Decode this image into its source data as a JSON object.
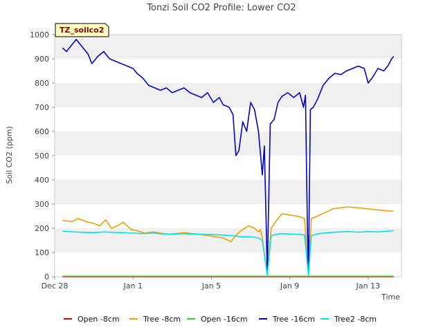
{
  "chart_data": {
    "type": "line",
    "title": "Tonzi Soil CO2 Profile: Lower CO2",
    "xlabel": "Time",
    "ylabel": "Soil CO2 (ppm)",
    "ylim": [
      0,
      1000
    ],
    "yticks": [
      "0",
      "100",
      "200",
      "300",
      "400",
      "500",
      "600",
      "700",
      "800",
      "900",
      "1000"
    ],
    "xlim_days": [
      0,
      17.7
    ],
    "xticks": [
      {
        "label": "Dec 28",
        "day": 0
      },
      {
        "label": "Jan 1",
        "day": 4
      },
      {
        "label": "Jan 5",
        "day": 8
      },
      {
        "label": "Jan 9",
        "day": 12
      },
      {
        "label": "Jan 13",
        "day": 16
      }
    ],
    "badge": "TZ_soilco2",
    "grid": "horizontal bands",
    "legend_position": "bottom",
    "series": [
      {
        "name": "Open -8cm",
        "color": "#dd0000",
        "points": [
          [
            0.4,
            0
          ],
          [
            17.3,
            0
          ]
        ]
      },
      {
        "name": "Tree -8cm",
        "color": "#f0a000",
        "points": [
          [
            0.4,
            232
          ],
          [
            0.9,
            228
          ],
          [
            1.2,
            240
          ],
          [
            1.6,
            228
          ],
          [
            2.0,
            220
          ],
          [
            2.3,
            210
          ],
          [
            2.6,
            235
          ],
          [
            2.9,
            200
          ],
          [
            3.2,
            210
          ],
          [
            3.5,
            225
          ],
          [
            3.9,
            195
          ],
          [
            4.2,
            190
          ],
          [
            4.6,
            180
          ],
          [
            5.0,
            185
          ],
          [
            5.4,
            180
          ],
          [
            5.8,
            175
          ],
          [
            6.2,
            178
          ],
          [
            6.6,
            182
          ],
          [
            7.0,
            178
          ],
          [
            7.4,
            175
          ],
          [
            7.8,
            170
          ],
          [
            8.2,
            165
          ],
          [
            8.6,
            160
          ],
          [
            9.0,
            145
          ],
          [
            9.3,
            175
          ],
          [
            9.6,
            195
          ],
          [
            9.9,
            210
          ],
          [
            10.2,
            200
          ],
          [
            10.4,
            185
          ],
          [
            10.5,
            195
          ],
          [
            10.6,
            160
          ],
          [
            10.85,
            10
          ],
          [
            11.05,
            200
          ],
          [
            11.3,
            230
          ],
          [
            11.6,
            260
          ],
          [
            12.0,
            255
          ],
          [
            12.4,
            250
          ],
          [
            12.6,
            245
          ],
          [
            12.75,
            240
          ],
          [
            12.95,
            10
          ],
          [
            13.1,
            240
          ],
          [
            13.4,
            250
          ],
          [
            13.8,
            265
          ],
          [
            14.2,
            280
          ],
          [
            14.6,
            285
          ],
          [
            15.0,
            288
          ],
          [
            15.4,
            285
          ],
          [
            15.8,
            282
          ],
          [
            16.2,
            278
          ],
          [
            16.6,
            275
          ],
          [
            17.0,
            272
          ],
          [
            17.3,
            270
          ]
        ]
      },
      {
        "name": "Open -16cm",
        "color": "#22dd22",
        "points": [
          [
            0.4,
            2
          ],
          [
            17.3,
            2
          ]
        ]
      },
      {
        "name": "Tree -16cm",
        "color": "#0000cc",
        "points": [
          [
            0.4,
            945
          ],
          [
            0.6,
            930
          ],
          [
            0.9,
            960
          ],
          [
            1.1,
            980
          ],
          [
            1.4,
            950
          ],
          [
            1.7,
            920
          ],
          [
            1.9,
            880
          ],
          [
            2.2,
            910
          ],
          [
            2.5,
            930
          ],
          [
            2.8,
            900
          ],
          [
            3.1,
            890
          ],
          [
            3.4,
            880
          ],
          [
            3.7,
            870
          ],
          [
            4.0,
            860
          ],
          [
            4.2,
            840
          ],
          [
            4.5,
            820
          ],
          [
            4.8,
            790
          ],
          [
            5.1,
            780
          ],
          [
            5.4,
            770
          ],
          [
            5.7,
            780
          ],
          [
            6.0,
            760
          ],
          [
            6.3,
            770
          ],
          [
            6.6,
            780
          ],
          [
            6.9,
            760
          ],
          [
            7.2,
            750
          ],
          [
            7.5,
            740
          ],
          [
            7.8,
            760
          ],
          [
            8.1,
            720
          ],
          [
            8.4,
            740
          ],
          [
            8.6,
            710
          ],
          [
            8.9,
            700
          ],
          [
            9.1,
            670
          ],
          [
            9.25,
            500
          ],
          [
            9.4,
            520
          ],
          [
            9.6,
            640
          ],
          [
            9.8,
            600
          ],
          [
            10.0,
            720
          ],
          [
            10.2,
            690
          ],
          [
            10.4,
            600
          ],
          [
            10.6,
            420
          ],
          [
            10.7,
            540
          ],
          [
            10.8,
            200
          ],
          [
            10.85,
            10
          ],
          [
            11.0,
            630
          ],
          [
            11.2,
            650
          ],
          [
            11.4,
            720
          ],
          [
            11.6,
            745
          ],
          [
            11.9,
            760
          ],
          [
            12.2,
            740
          ],
          [
            12.5,
            760
          ],
          [
            12.7,
            700
          ],
          [
            12.8,
            750
          ],
          [
            12.9,
            200
          ],
          [
            12.95,
            10
          ],
          [
            13.05,
            690
          ],
          [
            13.2,
            700
          ],
          [
            13.4,
            730
          ],
          [
            13.7,
            790
          ],
          [
            14.0,
            820
          ],
          [
            14.3,
            840
          ],
          [
            14.6,
            835
          ],
          [
            14.9,
            850
          ],
          [
            15.2,
            860
          ],
          [
            15.5,
            870
          ],
          [
            15.8,
            860
          ],
          [
            16.0,
            800
          ],
          [
            16.2,
            820
          ],
          [
            16.5,
            860
          ],
          [
            16.8,
            850
          ],
          [
            17.0,
            870
          ],
          [
            17.2,
            900
          ],
          [
            17.3,
            910
          ]
        ]
      },
      {
        "name": "Tree2 -8cm",
        "color": "#00e5e5",
        "points": [
          [
            0.4,
            188
          ],
          [
            1.0,
            185
          ],
          [
            1.5,
            183
          ],
          [
            2.0,
            182
          ],
          [
            2.5,
            185
          ],
          [
            3.0,
            183
          ],
          [
            3.5,
            182
          ],
          [
            4.0,
            180
          ],
          [
            4.5,
            178
          ],
          [
            5.0,
            180
          ],
          [
            5.5,
            177
          ],
          [
            6.0,
            175
          ],
          [
            6.5,
            178
          ],
          [
            7.0,
            176
          ],
          [
            7.5,
            175
          ],
          [
            8.0,
            174
          ],
          [
            8.5,
            172
          ],
          [
            9.0,
            170
          ],
          [
            9.5,
            165
          ],
          [
            10.0,
            165
          ],
          [
            10.4,
            160
          ],
          [
            10.6,
            150
          ],
          [
            10.85,
            5
          ],
          [
            11.05,
            170
          ],
          [
            11.5,
            178
          ],
          [
            12.0,
            176
          ],
          [
            12.5,
            175
          ],
          [
            12.75,
            172
          ],
          [
            12.95,
            5
          ],
          [
            13.1,
            170
          ],
          [
            13.5,
            178
          ],
          [
            14.0,
            182
          ],
          [
            14.5,
            185
          ],
          [
            15.0,
            186
          ],
          [
            15.5,
            184
          ],
          [
            16.0,
            186
          ],
          [
            16.5,
            185
          ],
          [
            17.0,
            188
          ],
          [
            17.3,
            190
          ]
        ]
      }
    ]
  }
}
